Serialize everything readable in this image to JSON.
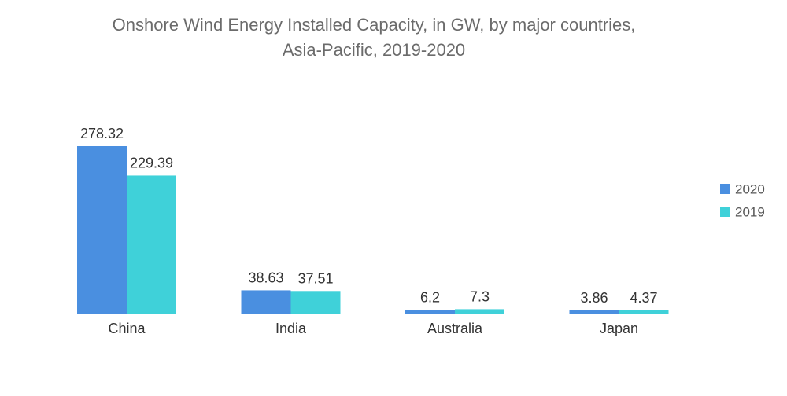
{
  "title_line1": "Onshore Wind Energy Installed Capacity, in GW, by major countries,",
  "title_line2": "Asia-Pacific, 2019-2020",
  "colors": {
    "series_2020": "#4a8fe0",
    "series_2019": "#3fd1d9"
  },
  "chart_data": {
    "type": "bar",
    "title": "Onshore Wind Energy Installed Capacity, in GW, by major countries, Asia-Pacific, 2019-2020",
    "categories": [
      "China",
      "India",
      "Australia",
      "Japan"
    ],
    "series": [
      {
        "name": "2020",
        "values": [
          278.32,
          38.63,
          6.2,
          3.86
        ]
      },
      {
        "name": "2019",
        "values": [
          229.39,
          37.51,
          7.3,
          4.37
        ]
      }
    ],
    "value_labels": [
      [
        "278.32",
        "38.63",
        "6.2",
        "3.86"
      ],
      [
        "229.39",
        "37.51",
        "7.3",
        "4.37"
      ]
    ],
    "xlabel": "",
    "ylabel": "",
    "ylim": [
      0,
      278.32
    ],
    "grid": false,
    "legend_position": "right"
  }
}
